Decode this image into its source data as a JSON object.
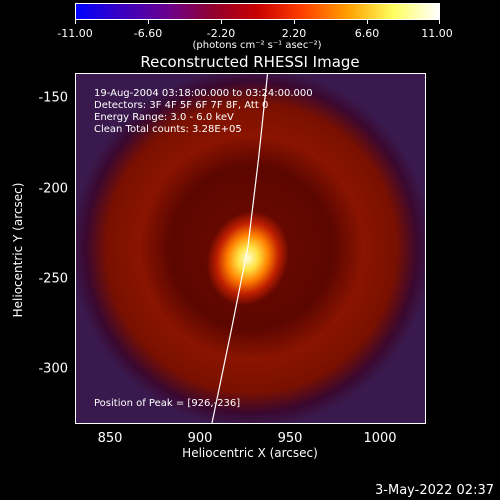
{
  "colorbar": {
    "labels": [
      "-11.00",
      "-6.60",
      "-2.20",
      "2.20",
      "6.60",
      "11.00"
    ],
    "units": "(photons cm⁻² s⁻¹ asec⁻²)",
    "range": [
      -11.0,
      11.0
    ],
    "colormap": [
      "#0000ff",
      "#3a00c0",
      "#6a0090",
      "#900030",
      "#c80000",
      "#ff4000",
      "#ffa000",
      "#ffff60",
      "#ffffff"
    ]
  },
  "chart_data": {
    "type": "heatmap",
    "title": "Reconstructed RHESSI Image",
    "xlabel": "Heliocentric X (arcsec)",
    "ylabel": "Heliocentric Y (arcsec)",
    "xlim": [
      830,
      1025
    ],
    "ylim": [
      -328,
      -133
    ],
    "xticks": [
      "850",
      "900",
      "950",
      "1000"
    ],
    "yticks": [
      "-150",
      "-200",
      "-250",
      "-300"
    ],
    "peak": {
      "x": 926,
      "y": -236,
      "value": 11.0
    },
    "ring": {
      "center": [
        928,
        -230
      ],
      "radius": 65,
      "value": 3.5
    },
    "background_value": -2.0,
    "annotations": [
      "19-Aug-2004 03:18:00.000 to 03:24:00.000",
      "Detectors: 3F 4F 5F 6F 7F 8F, Att 0",
      "Energy Range: 3.0 - 6.0 keV",
      "Clean    Total counts: 3.28E+05"
    ],
    "peak_label": "Position of Peak = [926,-236]"
  },
  "timestamp": "3-May-2022 02:37"
}
